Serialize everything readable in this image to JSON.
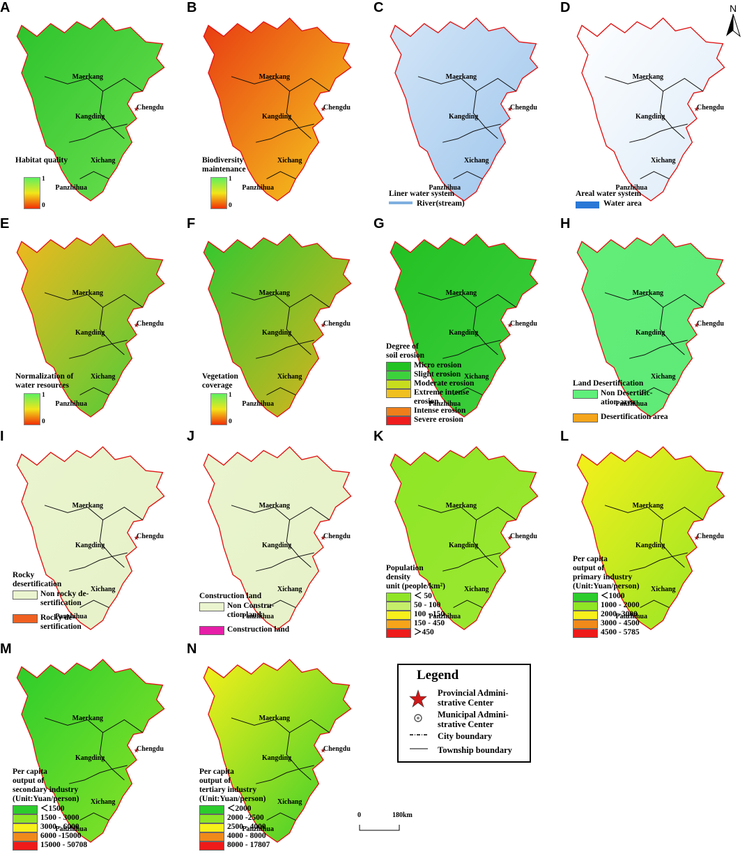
{
  "cities": {
    "maerkang": "Maerkang",
    "kangding": "Kangding",
    "chengdu": "Chengdu",
    "xichang": "Xichang",
    "panzhihua": "Panzhihua"
  },
  "north_label": "N",
  "panels": {
    "A": {
      "letter": "A",
      "legend_title": "Habitat quality",
      "max": "1",
      "min": "0"
    },
    "B": {
      "letter": "B",
      "legend_title": "Biodiversity\nmaintenance",
      "max": "1",
      "min": "0"
    },
    "C": {
      "letter": "C",
      "legend_title": "Liner water system",
      "items": [
        "River(stream)"
      ]
    },
    "D": {
      "letter": "D",
      "legend_title": "Areal water system",
      "items": [
        "Water area"
      ]
    },
    "E": {
      "letter": "E",
      "legend_title": "Normalization of\nwater resources",
      "max": "1",
      "min": "0"
    },
    "F": {
      "letter": "F",
      "legend_title": "Vegetation\ncoverage",
      "max": "1",
      "min": "0"
    },
    "G": {
      "letter": "G",
      "legend_title": "Degree of\nsoil erosion",
      "items": [
        "Micro erosion",
        "Slight erosion",
        "Moderate erosion",
        "Extreme intense\nerosion",
        "Intense erosion",
        "Severe erosion"
      ],
      "colors": [
        "#22c322",
        "#3cd23c",
        "#c8dc1e",
        "#f0c020",
        "#ef7f1a",
        "#ef1d1d"
      ]
    },
    "H": {
      "letter": "H",
      "legend_title": "Land Desertification",
      "items": [
        "Non Desertific-\nation area",
        "Desertification area"
      ],
      "colors": [
        "#5fef7a",
        "#f5a51c"
      ]
    },
    "I": {
      "letter": "I",
      "legend_title": "Rocky\ndesertification",
      "items": [
        "Non rocky de-\nsertification",
        "Rocky de-\nsertification"
      ],
      "colors": [
        "#eaf5cf",
        "#f06020"
      ]
    },
    "J": {
      "letter": "J",
      "legend_title": "Construction land",
      "items": [
        "Non Constru-\nction land",
        "Construction land"
      ],
      "colors": [
        "#eaf5cf",
        "#e61ea8"
      ]
    },
    "K": {
      "letter": "K",
      "legend_title": "Population\ndensity\n unit  (people/km²)",
      "items": [
        "＜ 50",
        "50 - 100",
        "100 - 150",
        "150 - 450",
        "＞450"
      ],
      "colors": [
        "#8fe526",
        "#c6ee6a",
        "#f7f01a",
        "#f7a41a",
        "#ef1a1a"
      ]
    },
    "L": {
      "letter": "L",
      "legend_title": "Per capita\noutput of\nprimary industry\n(Unit:Yuan/person)",
      "items": [
        "＜1000",
        "1000 - 2000",
        "2000 -3000",
        "3000 - 4500",
        "4500 - 5785"
      ],
      "colors": [
        "#2ccc2c",
        "#8fe526",
        "#f7f01a",
        "#f08a1a",
        "#ef1a1a"
      ]
    },
    "M": {
      "letter": "M",
      "legend_title": "Per capita\noutput of\nsecondary industry\n(Unit:Yuan/person)",
      "items": [
        "＜1500",
        "1500 - 3000",
        "3000 - 6000",
        "6000 -15000",
        "15000 - 50708"
      ],
      "colors": [
        "#2ccc2c",
        "#8fe526",
        "#f7f01a",
        "#f08a1a",
        "#ef1a1a"
      ]
    },
    "N": {
      "letter": "N",
      "legend_title": "Per capita\noutput of\ntertiary industry\n(Unit:Yuan/person)",
      "items": [
        "＜2000",
        "2000 -2500",
        "2500 - 4000",
        "4000 - 8000",
        "8000 - 17807"
      ],
      "colors": [
        "#2ccc2c",
        "#8fe526",
        "#f7f01a",
        "#f08a1a",
        "#ef1a1a"
      ]
    }
  },
  "legend": {
    "title": "Legend",
    "provincial": "Provincial Admini-\nstrative Center",
    "municipal": "Municipal Admini-\nstrative Center",
    "city_boundary": "City boundary",
    "township_boundary": "Township boundary"
  },
  "scale": {
    "zero": "0",
    "distance": "180km"
  }
}
